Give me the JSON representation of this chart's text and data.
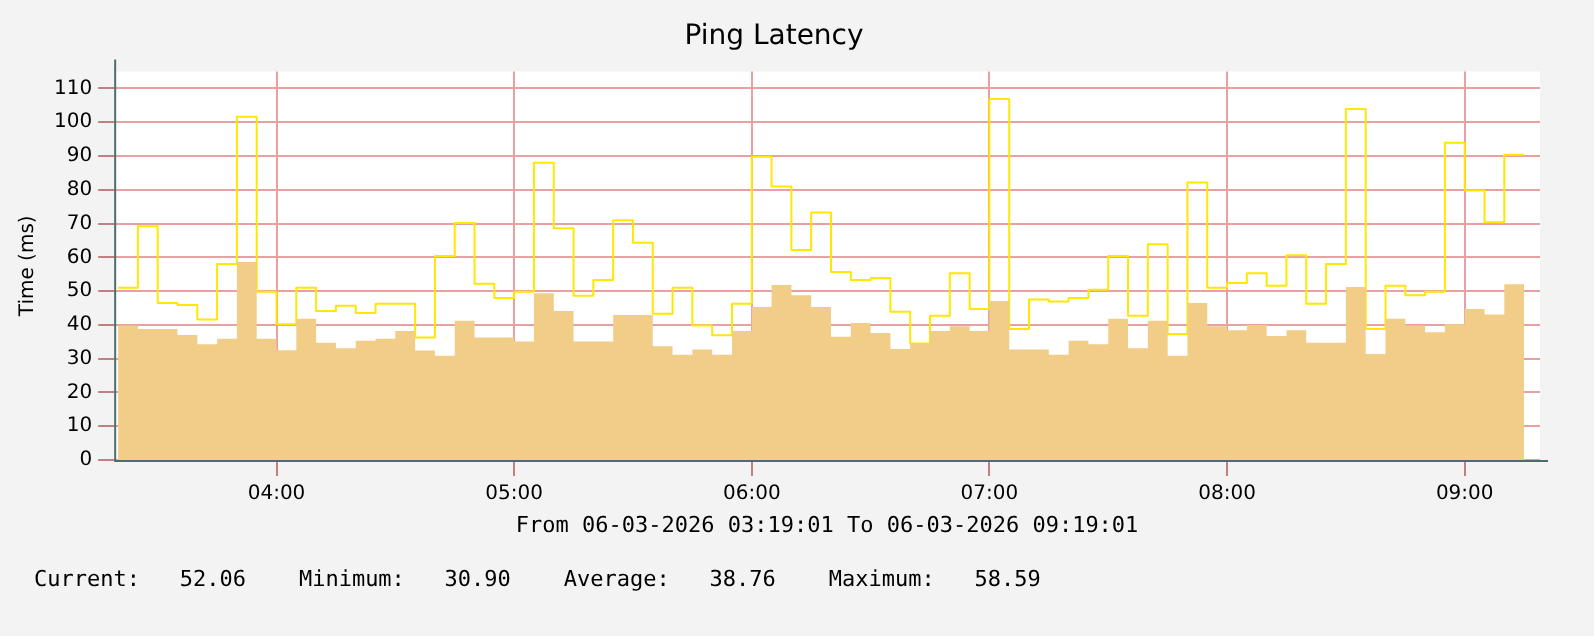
{
  "chart_data": {
    "type": "step",
    "title": "Ping Latency",
    "ylabel": "Time (ms)",
    "annotations": [
      "From 06-03-2026 03:19:01 To 06-03-2026 09:19:01",
      "Current:   52.06    Minimum:   30.90    Average:   38.76    Maximum:   58.59"
    ],
    "x": [
      3.3333,
      3.4167,
      3.5,
      3.5833,
      3.6667,
      3.75,
      3.8333,
      3.9167,
      4,
      4.0833,
      4.1667,
      4.25,
      4.3333,
      4.4167,
      4.5,
      4.5833,
      4.6667,
      4.75,
      4.8333,
      4.9167,
      5,
      5.0833,
      5.1667,
      5.25,
      5.3333,
      5.4167,
      5.5,
      5.5833,
      5.6667,
      5.75,
      5.8333,
      5.9167,
      6,
      6.0833,
      6.1667,
      6.25,
      6.3333,
      6.4167,
      6.5,
      6.5833,
      6.6667,
      6.75,
      6.8333,
      6.9167,
      7,
      7.0833,
      7.1667,
      7.25,
      7.3333,
      7.4167,
      7.5,
      7.5833,
      7.6667,
      7.75,
      7.8333,
      7.9167,
      8,
      8.0833,
      8.1667,
      8.25,
      8.3333,
      8.4167,
      8.5,
      8.5833,
      8.6667,
      8.75,
      8.8333,
      8.9167,
      9,
      9.0833,
      9.1667,
      9.25
    ],
    "series": [
      {
        "type": "area",
        "color": "#f2cd88",
        "values": [
          39.8,
          38.8,
          38.8,
          37,
          34.3,
          35.9,
          58.59,
          35.9,
          32.5,
          41.8,
          34.7,
          33.1,
          35.3,
          35.9,
          38.2,
          32.4,
          30.9,
          41.2,
          36.3,
          36.3,
          35.1,
          49.4,
          44.1,
          35.1,
          35.1,
          42.9,
          42.9,
          33.7,
          31.2,
          32.7,
          31.2,
          38.2,
          45.3,
          51.8,
          48.8,
          45.3,
          36.5,
          40.6,
          37.6,
          32.9,
          34.5,
          38.2,
          39.6,
          38.2,
          47.1,
          32.7,
          32.7,
          31.2,
          35.3,
          34.3,
          41.8,
          33.1,
          41.2,
          30.9,
          46.5,
          39.6,
          38.4,
          40,
          36.7,
          38.4,
          34.7,
          34.7,
          51.2,
          31.4,
          41.8,
          39.8,
          37.8,
          40.2,
          44.7,
          43.1,
          52.06,
          52.06
        ]
      },
      {
        "type": "step",
        "color": "#ffe800",
        "values": [
          51,
          69.2,
          46.5,
          45.9,
          41.6,
          58,
          101.6,
          49.8,
          40.2,
          51,
          44.1,
          45.7,
          43.5,
          46.3,
          46.3,
          36.3,
          60.4,
          70.2,
          52.2,
          48,
          49.8,
          88,
          68.6,
          48.6,
          53.3,
          71,
          64.3,
          43.3,
          51,
          39.8,
          36.9,
          46.3,
          89.8,
          81,
          62.2,
          73.3,
          55.7,
          53.3,
          53.9,
          43.9,
          34.5,
          42.7,
          55.3,
          44.7,
          106.9,
          38.8,
          47.5,
          46.9,
          48,
          50.4,
          60.4,
          42.7,
          63.9,
          37.3,
          82.2,
          51,
          52.4,
          55.3,
          51.6,
          60.6,
          46.3,
          58,
          103.9,
          38.8,
          51.6,
          48.8,
          49.8,
          93.9,
          79.8,
          70.4,
          90.4,
          90.4
        ]
      }
    ],
    "xlim": [
      3.3169,
      9.3169
    ],
    "xticks": [
      {
        "value": 4,
        "label": "04:00"
      },
      {
        "value": 5,
        "label": "05:00"
      },
      {
        "value": 6,
        "label": "06:00"
      },
      {
        "value": 7,
        "label": "07:00"
      },
      {
        "value": 8,
        "label": "08:00"
      },
      {
        "value": 9,
        "label": "09:00"
      }
    ],
    "ylim": [
      0,
      115
    ],
    "yticks": [
      0,
      10,
      20,
      30,
      40,
      50,
      60,
      70,
      80,
      90,
      100,
      110
    ],
    "grid": true,
    "legend": false
  }
}
